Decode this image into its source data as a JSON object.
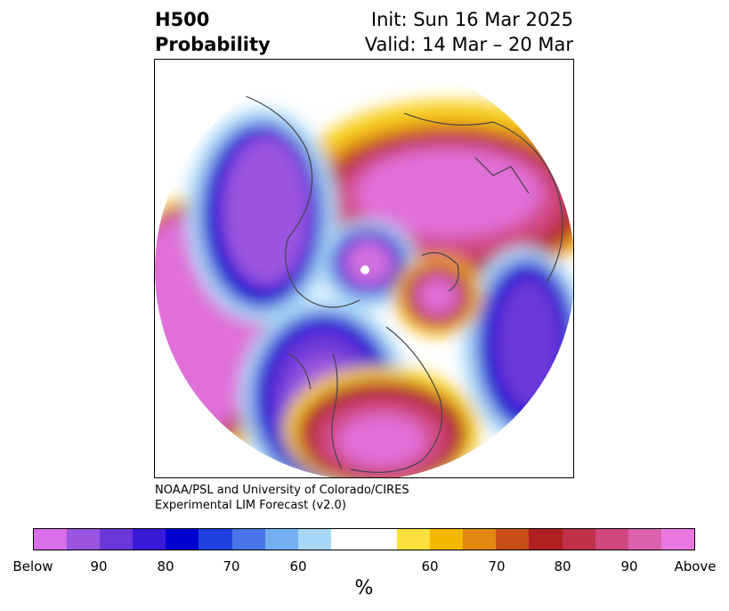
{
  "header": {
    "variable_line1": "H500",
    "variable_line2": "Probability",
    "init_line": "Init: Sun 16 Mar 2025",
    "valid_line": "Valid: 14 Mar – 20 Mar"
  },
  "credit": {
    "line1": "NOAA/PSL and University of Colorado/CIRES",
    "line2": "Experimental LIM Forecast (v2.0)"
  },
  "colorbar": {
    "colors": [
      "#d86ee8",
      "#9b55e0",
      "#6a38d8",
      "#3a19d8",
      "#0000d0",
      "#2040e0",
      "#4a75e8",
      "#72b0f0",
      "#a8d8f8",
      "#ffffff",
      "#ffffff",
      "#fde040",
      "#f5b800",
      "#e08810",
      "#c85018",
      "#b02020",
      "#c03048",
      "#d04880",
      "#dc62b0",
      "#e878e0"
    ],
    "tick_labels": [
      "Below",
      "90",
      "80",
      "70",
      "60",
      "60",
      "70",
      "80",
      "90",
      "Above"
    ],
    "units": "%"
  },
  "map": {
    "projection": "north-polar-stereographic",
    "coastline_color": "#444444"
  }
}
